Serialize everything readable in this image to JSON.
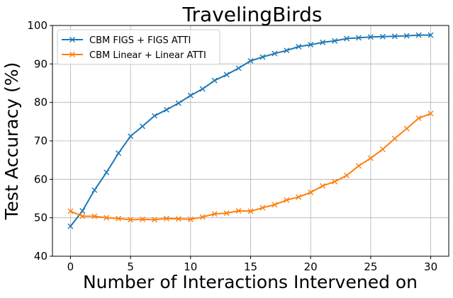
{
  "chart_data": {
    "type": "line",
    "title": "TravelingBirds",
    "xlabel": "Number of Interactions Intervened on",
    "ylabel": "Test Accuracy (%)",
    "xlim": [
      -1.5,
      31.5
    ],
    "ylim": [
      40,
      100
    ],
    "xticks": [
      0,
      5,
      10,
      15,
      20,
      25,
      30
    ],
    "yticks": [
      40,
      50,
      60,
      70,
      80,
      90,
      100
    ],
    "grid": true,
    "legend_position": "upper-left",
    "marker": "x",
    "x": [
      0,
      1,
      2,
      3,
      4,
      5,
      6,
      7,
      8,
      9,
      10,
      11,
      12,
      13,
      14,
      15,
      16,
      17,
      18,
      19,
      20,
      21,
      22,
      23,
      24,
      25,
      26,
      27,
      28,
      29,
      30
    ],
    "series": [
      {
        "name": "CBM FIGS + FIGS ATTI",
        "color": "#1f77b4",
        "values": [
          47.8,
          51.8,
          57.2,
          61.8,
          66.8,
          71.2,
          73.8,
          76.5,
          78.1,
          79.8,
          81.8,
          83.5,
          85.7,
          87.2,
          88.9,
          90.8,
          91.8,
          92.7,
          93.5,
          94.5,
          95.0,
          95.6,
          96.0,
          96.6,
          96.8,
          97.0,
          97.1,
          97.2,
          97.3,
          97.5,
          97.5
        ]
      },
      {
        "name": "CBM Linear + Linear ATTI",
        "color": "#ff7f0e",
        "values": [
          51.7,
          50.4,
          50.4,
          50.0,
          49.8,
          49.5,
          49.6,
          49.5,
          49.8,
          49.7,
          49.6,
          50.2,
          51.0,
          51.2,
          51.8,
          51.7,
          52.6,
          53.4,
          54.6,
          55.4,
          56.6,
          58.3,
          59.4,
          61.0,
          63.5,
          65.5,
          67.8,
          70.6,
          73.2,
          75.9,
          77.1
        ]
      }
    ]
  }
}
